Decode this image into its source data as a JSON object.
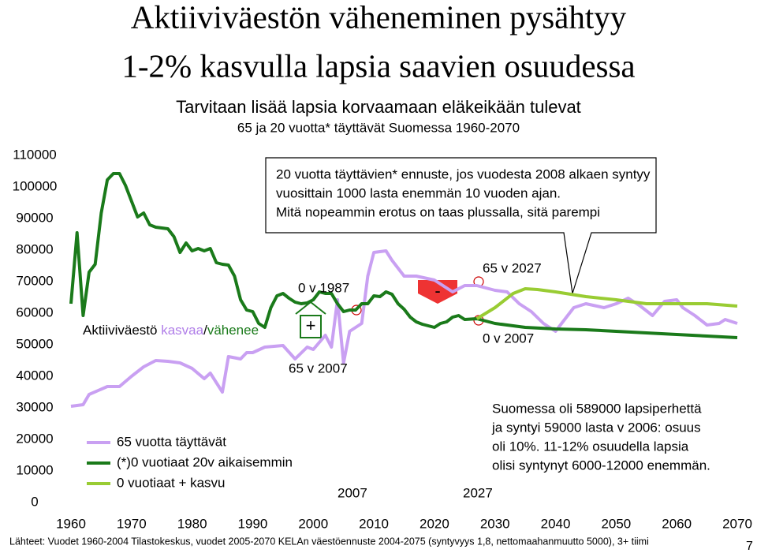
{
  "chart_data": {
    "type": "line",
    "title": [
      "Aktiiviväestön väheneminen pysähtyy",
      "1-2% kasvulla lapsia saavien osuudessa"
    ],
    "subtitle": [
      "Tarvitaan lisää lapsia korvaamaan eläkeikään tulevat",
      "65 ja 20 vuotta* täyttävät Suomessa 1960-2070"
    ],
    "xlim": [
      1960,
      2070
    ],
    "xticks": [
      1960,
      1970,
      1980,
      1990,
      2000,
      2010,
      2020,
      2030,
      2040,
      2050,
      2060,
      2070
    ],
    "ylim": [
      0,
      110000
    ],
    "yticks": [
      0,
      10000,
      20000,
      30000,
      40000,
      50000,
      60000,
      70000,
      80000,
      90000,
      100000,
      110000
    ],
    "series": [
      {
        "name": "65 vuotta täyttävät",
        "color": "#c9a0f2",
        "x": [
          1960,
          1962,
          1963,
          1966,
          1968,
          1970,
          1972,
          1974,
          1976,
          1978,
          1980,
          1982,
          1983,
          1985,
          1986,
          1988,
          1989,
          1990,
          1992,
          1995,
          1997,
          1999,
          2000,
          2002,
          2003,
          2004,
          2005,
          2006,
          2008,
          2009,
          2010,
          2012,
          2013,
          2015,
          2017,
          2020,
          2023,
          2025,
          2027,
          2030,
          2032,
          2034,
          2036,
          2038,
          2040,
          2043,
          2045,
          2048,
          2050,
          2052,
          2054,
          2056,
          2058,
          2060,
          2061,
          2063,
          2065,
          2067,
          2068,
          2070
        ],
        "values": [
          30500,
          31000,
          34250,
          36750,
          36750,
          40000,
          43000,
          45000,
          44750,
          44250,
          42500,
          39250,
          41000,
          35000,
          46250,
          45500,
          47500,
          47500,
          49250,
          49750,
          45500,
          49250,
          48500,
          53000,
          49250,
          64250,
          44250,
          54250,
          56750,
          71750,
          79250,
          79750,
          76750,
          71750,
          71750,
          70500,
          66750,
          68750,
          68750,
          67250,
          66750,
          63000,
          60500,
          56750,
          54250,
          61750,
          63000,
          61750,
          63000,
          64750,
          62250,
          59250,
          63750,
          64250,
          61750,
          59250,
          56250,
          56750,
          58000,
          56750
        ]
      },
      {
        "name": "(*)0 vuotiaat 20v aikaisemmin",
        "color": "#1a7a1a",
        "x": [
          1960,
          1961,
          1962,
          1963,
          1964,
          1965,
          1966,
          1967,
          1968,
          1969,
          1970,
          1971,
          1972,
          1973,
          1974,
          1976,
          1977,
          1978,
          1979,
          1980,
          1981,
          1982,
          1983,
          1984,
          1985,
          1986,
          1987,
          1988,
          1989,
          1990,
          1991,
          1992,
          1993,
          1994,
          1995,
          1996,
          1997,
          1998,
          1999,
          2000,
          2001,
          2002,
          2003,
          2004,
          2005,
          2006,
          2007,
          2008,
          2009,
          2010,
          2011,
          2012,
          2013,
          2014,
          2015,
          2016,
          2017,
          2018,
          2019,
          2020,
          2021,
          2022,
          2023,
          2024,
          2025,
          2027,
          2030,
          2035,
          2040,
          2045,
          2050,
          2055,
          2060,
          2065,
          2070
        ],
        "values": [
          63000,
          85500,
          59250,
          73000,
          75500,
          91750,
          102250,
          104250,
          104250,
          100500,
          95500,
          90500,
          91750,
          88000,
          87250,
          86750,
          84250,
          79250,
          82250,
          79750,
          80500,
          79750,
          80500,
          76000,
          75500,
          75250,
          71750,
          64250,
          61000,
          60500,
          56750,
          55500,
          61750,
          65500,
          66250,
          64750,
          63500,
          63000,
          63250,
          64250,
          66750,
          66250,
          66250,
          63000,
          60500,
          61000,
          61000,
          63000,
          63000,
          65500,
          65250,
          66750,
          66000,
          63000,
          61250,
          58750,
          57250,
          56500,
          56000,
          55500,
          56750,
          57250,
          58750,
          59250,
          58000,
          58250,
          56750,
          55500,
          55000,
          54750,
          54250,
          53750,
          53250,
          52750,
          52250
        ]
      },
      {
        "name": "0 vuotiaat + kasvu",
        "color": "#99cc33",
        "x": [
          2027,
          2030,
          2033,
          2035,
          2037,
          2040,
          2045,
          2050,
          2055,
          2060,
          2065,
          2070
        ],
        "values": [
          58250,
          61750,
          66250,
          67750,
          67500,
          66750,
          65250,
          64250,
          63000,
          63000,
          63000,
          62250
        ]
      }
    ],
    "callout": [
      "20 vuotta täyttävien* ennuste, jos vuodesta 2008 alkaen syntyy",
      "vuosittain 1000 lasta enemmän 10 vuoden ajan.",
      "Mitä nopeammin erotus on taas plussalla, sitä parempi"
    ],
    "annotations": [
      "0 v 1987",
      "+",
      "65 v 2007",
      "-",
      "65 v 2027",
      "0 v 2007",
      "2007",
      "2027"
    ],
    "active_label": [
      "Aktiiviväestö ",
      "kasvaa",
      "/",
      "vähenee"
    ],
    "note": [
      "Suomessa oli 589000 lapsiperhettä",
      "ja syntyi 59000 lasta v 2006: osuus",
      "oli 10%. 11-12% osuudella lapsia",
      "olisi syntynyt 6000-12000 enemmän."
    ],
    "source": "Lähteet: Vuodet 1960-2004 Tilastokeskus, vuodet 2005-2070 KELAn väestöennuste 2004-2075 (syntyvyys 1,8, nettomaahanmuutto 5000), 3+ tiimi",
    "page_number": "7"
  }
}
